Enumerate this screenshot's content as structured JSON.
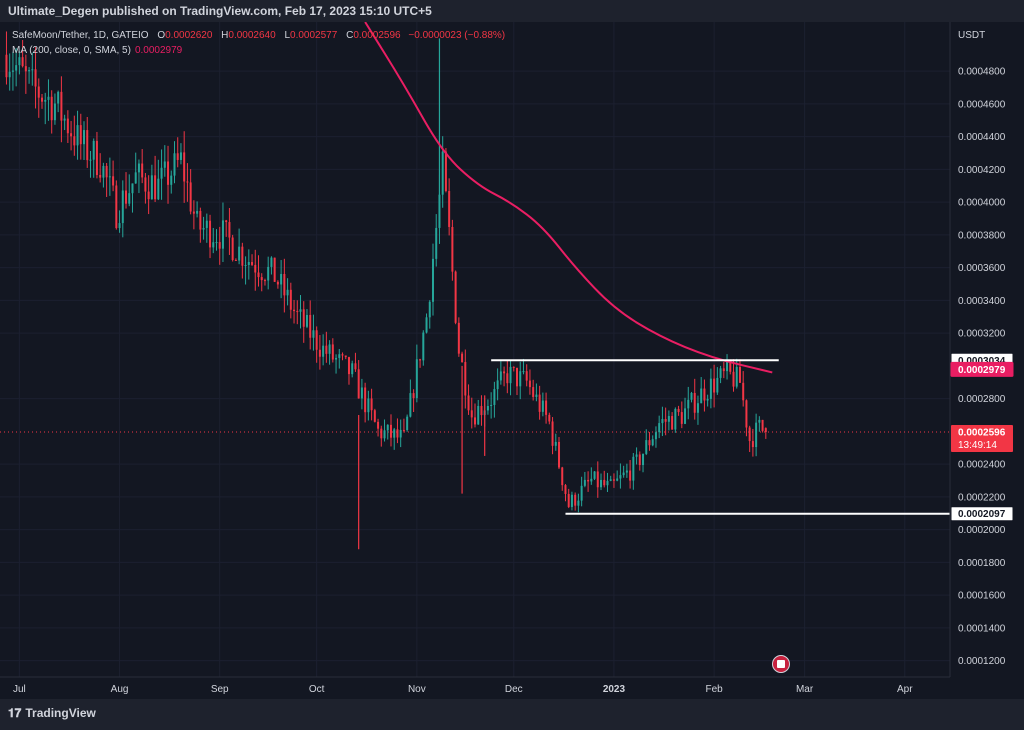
{
  "header": {
    "title": "Ultimate_Degen published on TradingView.com, Feb 17, 2023 15:10 UTC+5"
  },
  "legend": {
    "symbol": "SafeMoon/Tether, 1D, GATEIO",
    "open_label": "O",
    "open": "0.0002620",
    "high_label": "H",
    "high": "0.0002640",
    "low_label": "L",
    "low": "0.0002577",
    "close_label": "C",
    "close": "0.0002596",
    "change": "−0.0000023 (−0.88%)",
    "ma_text": "MA (200, close, 0, SMA, 5)",
    "ma_value": "0.0002979"
  },
  "footer": {
    "brand": "TradingView",
    "logo_icon": "tradingview-logo-icon"
  },
  "colors": {
    "background": "#131722",
    "up": "#26a69a",
    "down": "#f23645",
    "ma": "#e91e63",
    "text": "#d1d4dc"
  },
  "chart_data": {
    "type": "candlestick",
    "currency": "USDT",
    "ylim": [
      0.00011,
      0.00051
    ],
    "x_range": [
      "2022-06-25",
      "2023-04-15"
    ],
    "y_ticks": [
      "0.0004800",
      "0.0004600",
      "0.0004400",
      "0.0004200",
      "0.0004000",
      "0.0003800",
      "0.0003600",
      "0.0003400",
      "0.0003200",
      "0.0002800",
      "0.0002400",
      "0.0002200",
      "0.0002000",
      "0.0001800",
      "0.0001600",
      "0.0001400",
      "0.0001200"
    ],
    "x_ticks": [
      {
        "label": "Jul",
        "date": "2022-07-01"
      },
      {
        "label": "Aug",
        "date": "2022-08-01"
      },
      {
        "label": "Sep",
        "date": "2022-09-01"
      },
      {
        "label": "Oct",
        "date": "2022-10-01"
      },
      {
        "label": "Nov",
        "date": "2022-11-01"
      },
      {
        "label": "Dec",
        "date": "2022-12-01"
      },
      {
        "label": "2023",
        "date": "2023-01-01"
      },
      {
        "label": "Feb",
        "date": "2023-02-01"
      },
      {
        "label": "Mar",
        "date": "2023-03-01"
      },
      {
        "label": "Apr",
        "date": "2023-04-01"
      }
    ],
    "price_path": [
      {
        "date": "2022-06-27",
        "price": 0.00049
      },
      {
        "date": "2022-07-05",
        "price": 0.00047
      },
      {
        "date": "2022-07-12",
        "price": 0.00046
      },
      {
        "date": "2022-07-20",
        "price": 0.000435
      },
      {
        "date": "2022-07-26",
        "price": 0.000425
      },
      {
        "date": "2022-07-31",
        "price": 0.000395
      },
      {
        "date": "2022-08-06",
        "price": 0.000415
      },
      {
        "date": "2022-08-13",
        "price": 0.00041
      },
      {
        "date": "2022-08-20",
        "price": 0.000425
      },
      {
        "date": "2022-08-25",
        "price": 0.000385
      },
      {
        "date": "2022-09-02",
        "price": 0.00038
      },
      {
        "date": "2022-09-10",
        "price": 0.000365
      },
      {
        "date": "2022-09-18",
        "price": 0.000355
      },
      {
        "date": "2022-09-25",
        "price": 0.00033
      },
      {
        "date": "2022-10-03",
        "price": 0.00031
      },
      {
        "date": "2022-10-12",
        "price": 0.000295
      },
      {
        "date": "2022-10-20",
        "price": 0.00026
      },
      {
        "date": "2022-10-28",
        "price": 0.000255
      },
      {
        "date": "2022-11-04",
        "price": 0.00033
      },
      {
        "date": "2022-11-09",
        "price": 0.00042
      },
      {
        "date": "2022-11-11",
        "price": 0.00038
      },
      {
        "date": "2022-11-14",
        "price": 0.00031
      },
      {
        "date": "2022-11-18",
        "price": 0.00027
      },
      {
        "date": "2022-11-24",
        "price": 0.00028
      },
      {
        "date": "2022-11-29",
        "price": 0.000295
      },
      {
        "date": "2022-12-05",
        "price": 0.00029
      },
      {
        "date": "2022-12-12",
        "price": 0.000265
      },
      {
        "date": "2022-12-18",
        "price": 0.000215
      },
      {
        "date": "2022-12-25",
        "price": 0.00023
      },
      {
        "date": "2022-12-31",
        "price": 0.000225
      },
      {
        "date": "2023-01-08",
        "price": 0.00024
      },
      {
        "date": "2023-01-15",
        "price": 0.000265
      },
      {
        "date": "2023-01-22",
        "price": 0.00027
      },
      {
        "date": "2023-01-29",
        "price": 0.000285
      },
      {
        "date": "2023-02-05",
        "price": 0.000295
      },
      {
        "date": "2023-02-09",
        "price": 0.00029
      },
      {
        "date": "2023-02-12",
        "price": 0.000255
      },
      {
        "date": "2023-02-15",
        "price": 0.000262
      },
      {
        "date": "2023-02-17",
        "price": 0.0002596
      }
    ],
    "spikes": [
      {
        "date": "2022-11-08",
        "high": 0.0005,
        "low": 0.00039
      },
      {
        "date": "2022-10-14",
        "high": 0.00027,
        "low": 0.000188
      },
      {
        "date": "2022-11-15",
        "high": 0.0003,
        "low": 0.000222
      },
      {
        "date": "2022-11-22",
        "high": 0.000282,
        "low": 0.000245
      }
    ],
    "ma200": [
      {
        "date": "2022-10-16",
        "value": 0.00051
      },
      {
        "date": "2022-10-28",
        "value": 0.000472
      },
      {
        "date": "2022-11-09",
        "value": 0.00043
      },
      {
        "date": "2022-11-20",
        "value": 0.00041
      },
      {
        "date": "2022-11-30",
        "value": 0.0004
      },
      {
        "date": "2022-12-10",
        "value": 0.000385
      },
      {
        "date": "2022-12-20",
        "value": 0.00036
      },
      {
        "date": "2023-01-01",
        "value": 0.000335
      },
      {
        "date": "2023-01-15",
        "value": 0.000318
      },
      {
        "date": "2023-01-31",
        "value": 0.000305
      },
      {
        "date": "2023-02-19",
        "value": 0.000296
      }
    ],
    "horizontal_lines": [
      {
        "value": 0.0003034,
        "label": "0.0003034",
        "from": "2022-11-24",
        "to": "2023-02-21"
      },
      {
        "value": 0.0002097,
        "label": "0.0002097",
        "from": "2022-12-17",
        "to": "2023-04-22"
      }
    ],
    "current_price": {
      "value": 0.0002596,
      "label": "0.0002596",
      "countdown": "13:49:14"
    },
    "ma_tag": {
      "value": 0.0002979,
      "label": "0.0002979"
    }
  }
}
